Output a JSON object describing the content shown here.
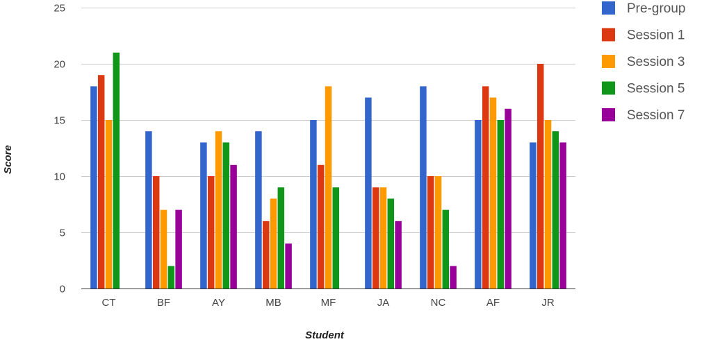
{
  "chart_data": {
    "type": "bar",
    "title": "",
    "xlabel": "Student",
    "ylabel": "Score",
    "ylim": [
      0,
      25
    ],
    "yticks": [
      0,
      5,
      10,
      15,
      20,
      25
    ],
    "grid": true,
    "legend_position": "right",
    "categories": [
      "CT",
      "BF",
      "AY",
      "MB",
      "MF",
      "JA",
      "NC",
      "AF",
      "JR"
    ],
    "series": [
      {
        "name": "Pre-group",
        "color": "#3366cc",
        "values": [
          18,
          14,
          13,
          14,
          15,
          17,
          18,
          15,
          13
        ]
      },
      {
        "name": "Session 1",
        "color": "#dc3912",
        "values": [
          19,
          10,
          10,
          6,
          11,
          9,
          10,
          18,
          20
        ]
      },
      {
        "name": "Session 3",
        "color": "#ff9900",
        "values": [
          15,
          7,
          14,
          8,
          18,
          9,
          10,
          17,
          15
        ]
      },
      {
        "name": "Session 5",
        "color": "#109618",
        "values": [
          21,
          2,
          13,
          9,
          9,
          8,
          7,
          15,
          14
        ]
      },
      {
        "name": "Session 7",
        "color": "#990099",
        "values": [
          null,
          7,
          11,
          4,
          null,
          6,
          2,
          16,
          13
        ]
      }
    ]
  }
}
